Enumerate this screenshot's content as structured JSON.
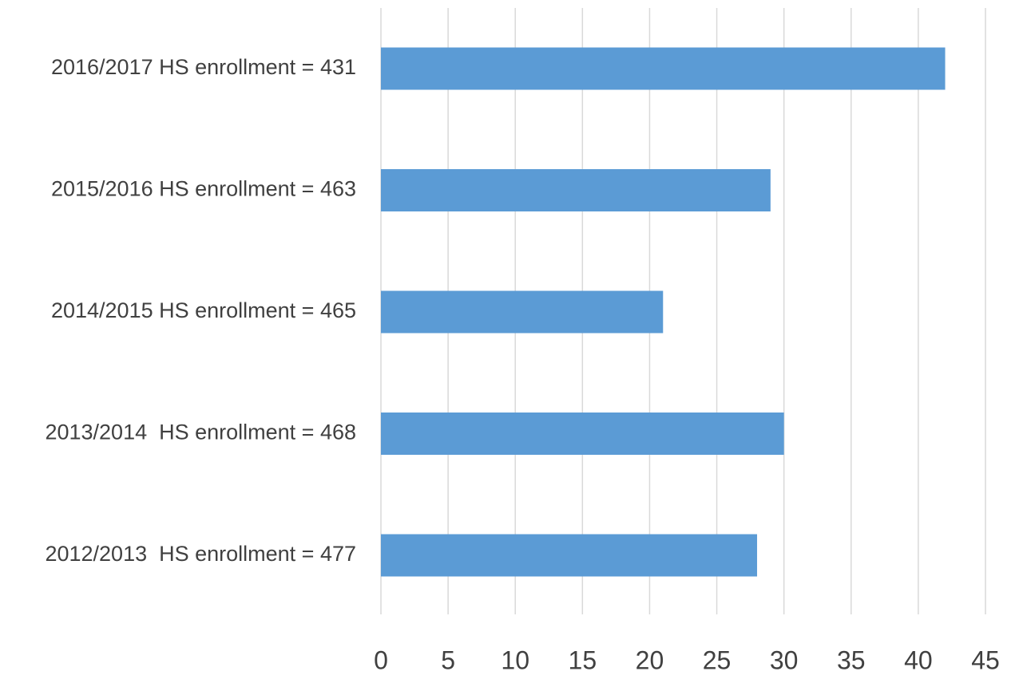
{
  "chart_data": {
    "type": "bar",
    "orientation": "horizontal",
    "categories": [
      "2016/2017 HS enrollment = 431",
      "2015/2016 HS enrollment = 463",
      "2014/2015 HS enrollment = 465",
      "2013/2014  HS enrollment = 468",
      "2012/2013  HS enrollment = 477"
    ],
    "values": [
      42,
      29,
      21,
      30,
      28
    ],
    "title": "",
    "xlabel": "",
    "ylabel": "",
    "xlim": [
      0,
      45
    ],
    "x_ticks": [
      "0",
      "5",
      "10",
      "15",
      "20",
      "25",
      "30",
      "35",
      "40",
      "45"
    ],
    "grid": "vertical",
    "legend": "none",
    "bar_color": "#5b9bd5",
    "grid_color": "#d9d9d9",
    "text_color": "#404040"
  }
}
